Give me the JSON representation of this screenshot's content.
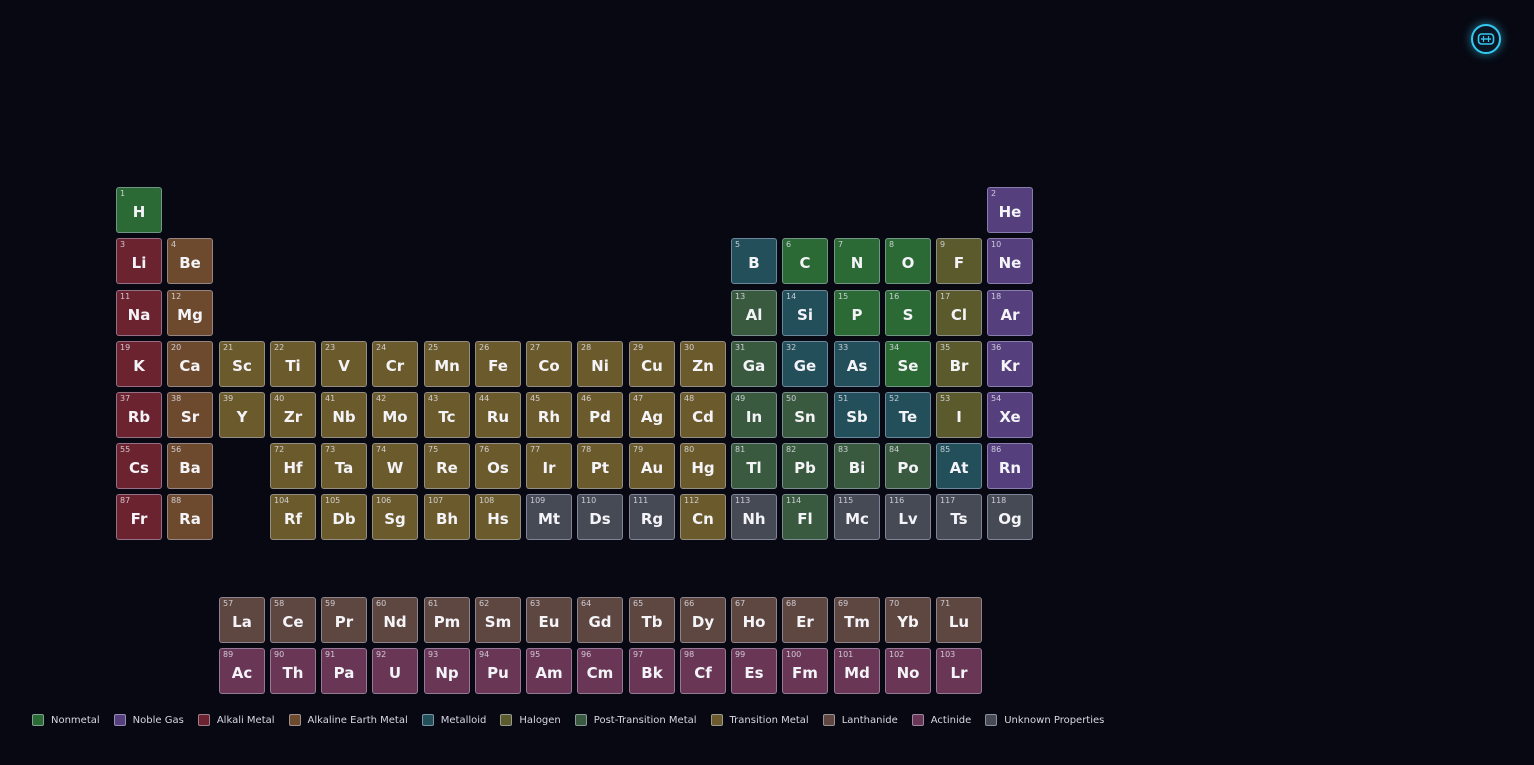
{
  "settings": {
    "icon": "palette-icon"
  },
  "categories": {
    "nonmetal": {
      "label": "Nonmetal",
      "color": "#2b6a34"
    },
    "noble": {
      "label": "Noble Gas",
      "color": "#553f7d"
    },
    "alkali": {
      "label": "Alkali Metal",
      "color": "#6c2330"
    },
    "alkaline": {
      "label": "Alkaline Earth Metal",
      "color": "#6d4a2e"
    },
    "metalloid": {
      "label": "Metalloid",
      "color": "#224f5a"
    },
    "halogen": {
      "label": "Halogen",
      "color": "#5a5a2c"
    },
    "posttrans": {
      "label": "Post-Transition Metal",
      "color": "#3a5a40"
    },
    "transition": {
      "label": "Transition Metal",
      "color": "#6b5a2c"
    },
    "lanthanide": {
      "label": "Lanthanide",
      "color": "#5e4740"
    },
    "actinide": {
      "label": "Actinide",
      "color": "#6a3656"
    },
    "unknown": {
      "label": "Unknown Properties",
      "color": "#464a55"
    }
  },
  "legend_order": [
    "nonmetal",
    "noble",
    "alkali",
    "alkaline",
    "metalloid",
    "halogen",
    "posttrans",
    "transition",
    "lanthanide",
    "actinide",
    "unknown"
  ],
  "elements": [
    {
      "n": 1,
      "s": "H",
      "c": "nonmetal",
      "g": 1,
      "p": 1
    },
    {
      "n": 2,
      "s": "He",
      "c": "noble",
      "g": 18,
      "p": 1
    },
    {
      "n": 3,
      "s": "Li",
      "c": "alkali",
      "g": 1,
      "p": 2
    },
    {
      "n": 4,
      "s": "Be",
      "c": "alkaline",
      "g": 2,
      "p": 2
    },
    {
      "n": 5,
      "s": "B",
      "c": "metalloid",
      "g": 13,
      "p": 2
    },
    {
      "n": 6,
      "s": "C",
      "c": "nonmetal",
      "g": 14,
      "p": 2
    },
    {
      "n": 7,
      "s": "N",
      "c": "nonmetal",
      "g": 15,
      "p": 2
    },
    {
      "n": 8,
      "s": "O",
      "c": "nonmetal",
      "g": 16,
      "p": 2
    },
    {
      "n": 9,
      "s": "F",
      "c": "halogen",
      "g": 17,
      "p": 2
    },
    {
      "n": 10,
      "s": "Ne",
      "c": "noble",
      "g": 18,
      "p": 2
    },
    {
      "n": 11,
      "s": "Na",
      "c": "alkali",
      "g": 1,
      "p": 3
    },
    {
      "n": 12,
      "s": "Mg",
      "c": "alkaline",
      "g": 2,
      "p": 3
    },
    {
      "n": 13,
      "s": "Al",
      "c": "posttrans",
      "g": 13,
      "p": 3
    },
    {
      "n": 14,
      "s": "Si",
      "c": "metalloid",
      "g": 14,
      "p": 3
    },
    {
      "n": 15,
      "s": "P",
      "c": "nonmetal",
      "g": 15,
      "p": 3
    },
    {
      "n": 16,
      "s": "S",
      "c": "nonmetal",
      "g": 16,
      "p": 3
    },
    {
      "n": 17,
      "s": "Cl",
      "c": "halogen",
      "g": 17,
      "p": 3
    },
    {
      "n": 18,
      "s": "Ar",
      "c": "noble",
      "g": 18,
      "p": 3
    },
    {
      "n": 19,
      "s": "K",
      "c": "alkali",
      "g": 1,
      "p": 4
    },
    {
      "n": 20,
      "s": "Ca",
      "c": "alkaline",
      "g": 2,
      "p": 4
    },
    {
      "n": 21,
      "s": "Sc",
      "c": "transition",
      "g": 3,
      "p": 4
    },
    {
      "n": 22,
      "s": "Ti",
      "c": "transition",
      "g": 4,
      "p": 4
    },
    {
      "n": 23,
      "s": "V",
      "c": "transition",
      "g": 5,
      "p": 4
    },
    {
      "n": 24,
      "s": "Cr",
      "c": "transition",
      "g": 6,
      "p": 4
    },
    {
      "n": 25,
      "s": "Mn",
      "c": "transition",
      "g": 7,
      "p": 4
    },
    {
      "n": 26,
      "s": "Fe",
      "c": "transition",
      "g": 8,
      "p": 4
    },
    {
      "n": 27,
      "s": "Co",
      "c": "transition",
      "g": 9,
      "p": 4
    },
    {
      "n": 28,
      "s": "Ni",
      "c": "transition",
      "g": 10,
      "p": 4
    },
    {
      "n": 29,
      "s": "Cu",
      "c": "transition",
      "g": 11,
      "p": 4
    },
    {
      "n": 30,
      "s": "Zn",
      "c": "transition",
      "g": 12,
      "p": 4
    },
    {
      "n": 31,
      "s": "Ga",
      "c": "posttrans",
      "g": 13,
      "p": 4
    },
    {
      "n": 32,
      "s": "Ge",
      "c": "metalloid",
      "g": 14,
      "p": 4
    },
    {
      "n": 33,
      "s": "As",
      "c": "metalloid",
      "g": 15,
      "p": 4
    },
    {
      "n": 34,
      "s": "Se",
      "c": "nonmetal",
      "g": 16,
      "p": 4
    },
    {
      "n": 35,
      "s": "Br",
      "c": "halogen",
      "g": 17,
      "p": 4
    },
    {
      "n": 36,
      "s": "Kr",
      "c": "noble",
      "g": 18,
      "p": 4
    },
    {
      "n": 37,
      "s": "Rb",
      "c": "alkali",
      "g": 1,
      "p": 5
    },
    {
      "n": 38,
      "s": "Sr",
      "c": "alkaline",
      "g": 2,
      "p": 5
    },
    {
      "n": 39,
      "s": "Y",
      "c": "transition",
      "g": 3,
      "p": 5
    },
    {
      "n": 40,
      "s": "Zr",
      "c": "transition",
      "g": 4,
      "p": 5
    },
    {
      "n": 41,
      "s": "Nb",
      "c": "transition",
      "g": 5,
      "p": 5
    },
    {
      "n": 42,
      "s": "Mo",
      "c": "transition",
      "g": 6,
      "p": 5
    },
    {
      "n": 43,
      "s": "Tc",
      "c": "transition",
      "g": 7,
      "p": 5
    },
    {
      "n": 44,
      "s": "Ru",
      "c": "transition",
      "g": 8,
      "p": 5
    },
    {
      "n": 45,
      "s": "Rh",
      "c": "transition",
      "g": 9,
      "p": 5
    },
    {
      "n": 46,
      "s": "Pd",
      "c": "transition",
      "g": 10,
      "p": 5
    },
    {
      "n": 47,
      "s": "Ag",
      "c": "transition",
      "g": 11,
      "p": 5
    },
    {
      "n": 48,
      "s": "Cd",
      "c": "transition",
      "g": 12,
      "p": 5
    },
    {
      "n": 49,
      "s": "In",
      "c": "posttrans",
      "g": 13,
      "p": 5
    },
    {
      "n": 50,
      "s": "Sn",
      "c": "posttrans",
      "g": 14,
      "p": 5
    },
    {
      "n": 51,
      "s": "Sb",
      "c": "metalloid",
      "g": 15,
      "p": 5
    },
    {
      "n": 52,
      "s": "Te",
      "c": "metalloid",
      "g": 16,
      "p": 5
    },
    {
      "n": 53,
      "s": "I",
      "c": "halogen",
      "g": 17,
      "p": 5
    },
    {
      "n": 54,
      "s": "Xe",
      "c": "noble",
      "g": 18,
      "p": 5
    },
    {
      "n": 55,
      "s": "Cs",
      "c": "alkali",
      "g": 1,
      "p": 6
    },
    {
      "n": 56,
      "s": "Ba",
      "c": "alkaline",
      "g": 2,
      "p": 6
    },
    {
      "n": 72,
      "s": "Hf",
      "c": "transition",
      "g": 4,
      "p": 6
    },
    {
      "n": 73,
      "s": "Ta",
      "c": "transition",
      "g": 5,
      "p": 6
    },
    {
      "n": 74,
      "s": "W",
      "c": "transition",
      "g": 6,
      "p": 6
    },
    {
      "n": 75,
      "s": "Re",
      "c": "transition",
      "g": 7,
      "p": 6
    },
    {
      "n": 76,
      "s": "Os",
      "c": "transition",
      "g": 8,
      "p": 6
    },
    {
      "n": 77,
      "s": "Ir",
      "c": "transition",
      "g": 9,
      "p": 6
    },
    {
      "n": 78,
      "s": "Pt",
      "c": "transition",
      "g": 10,
      "p": 6
    },
    {
      "n": 79,
      "s": "Au",
      "c": "transition",
      "g": 11,
      "p": 6
    },
    {
      "n": 80,
      "s": "Hg",
      "c": "transition",
      "g": 12,
      "p": 6
    },
    {
      "n": 81,
      "s": "Tl",
      "c": "posttrans",
      "g": 13,
      "p": 6
    },
    {
      "n": 82,
      "s": "Pb",
      "c": "posttrans",
      "g": 14,
      "p": 6
    },
    {
      "n": 83,
      "s": "Bi",
      "c": "posttrans",
      "g": 15,
      "p": 6
    },
    {
      "n": 84,
      "s": "Po",
      "c": "posttrans",
      "g": 16,
      "p": 6
    },
    {
      "n": 85,
      "s": "At",
      "c": "metalloid",
      "g": 17,
      "p": 6
    },
    {
      "n": 86,
      "s": "Rn",
      "c": "noble",
      "g": 18,
      "p": 6
    },
    {
      "n": 87,
      "s": "Fr",
      "c": "alkali",
      "g": 1,
      "p": 7
    },
    {
      "n": 88,
      "s": "Ra",
      "c": "alkaline",
      "g": 2,
      "p": 7
    },
    {
      "n": 104,
      "s": "Rf",
      "c": "transition",
      "g": 4,
      "p": 7
    },
    {
      "n": 105,
      "s": "Db",
      "c": "transition",
      "g": 5,
      "p": 7
    },
    {
      "n": 106,
      "s": "Sg",
      "c": "transition",
      "g": 6,
      "p": 7
    },
    {
      "n": 107,
      "s": "Bh",
      "c": "transition",
      "g": 7,
      "p": 7
    },
    {
      "n": 108,
      "s": "Hs",
      "c": "transition",
      "g": 8,
      "p": 7
    },
    {
      "n": 109,
      "s": "Mt",
      "c": "unknown",
      "g": 9,
      "p": 7
    },
    {
      "n": 110,
      "s": "Ds",
      "c": "unknown",
      "g": 10,
      "p": 7
    },
    {
      "n": 111,
      "s": "Rg",
      "c": "unknown",
      "g": 11,
      "p": 7
    },
    {
      "n": 112,
      "s": "Cn",
      "c": "transition",
      "g": 12,
      "p": 7
    },
    {
      "n": 113,
      "s": "Nh",
      "c": "unknown",
      "g": 13,
      "p": 7
    },
    {
      "n": 114,
      "s": "Fl",
      "c": "posttrans",
      "g": 14,
      "p": 7
    },
    {
      "n": 115,
      "s": "Mc",
      "c": "unknown",
      "g": 15,
      "p": 7
    },
    {
      "n": 116,
      "s": "Lv",
      "c": "unknown",
      "g": 16,
      "p": 7
    },
    {
      "n": 117,
      "s": "Ts",
      "c": "unknown",
      "g": 17,
      "p": 7
    },
    {
      "n": 118,
      "s": "Og",
      "c": "unknown",
      "g": 18,
      "p": 7
    },
    {
      "n": 57,
      "s": "La",
      "c": "lanthanide",
      "g": 3,
      "p": 9
    },
    {
      "n": 58,
      "s": "Ce",
      "c": "lanthanide",
      "g": 4,
      "p": 9
    },
    {
      "n": 59,
      "s": "Pr",
      "c": "lanthanide",
      "g": 5,
      "p": 9
    },
    {
      "n": 60,
      "s": "Nd",
      "c": "lanthanide",
      "g": 6,
      "p": 9
    },
    {
      "n": 61,
      "s": "Pm",
      "c": "lanthanide",
      "g": 7,
      "p": 9
    },
    {
      "n": 62,
      "s": "Sm",
      "c": "lanthanide",
      "g": 8,
      "p": 9
    },
    {
      "n": 63,
      "s": "Eu",
      "c": "lanthanide",
      "g": 9,
      "p": 9
    },
    {
      "n": 64,
      "s": "Gd",
      "c": "lanthanide",
      "g": 10,
      "p": 9
    },
    {
      "n": 65,
      "s": "Tb",
      "c": "lanthanide",
      "g": 11,
      "p": 9
    },
    {
      "n": 66,
      "s": "Dy",
      "c": "lanthanide",
      "g": 12,
      "p": 9
    },
    {
      "n": 67,
      "s": "Ho",
      "c": "lanthanide",
      "g": 13,
      "p": 9
    },
    {
      "n": 68,
      "s": "Er",
      "c": "lanthanide",
      "g": 14,
      "p": 9
    },
    {
      "n": 69,
      "s": "Tm",
      "c": "lanthanide",
      "g": 15,
      "p": 9
    },
    {
      "n": 70,
      "s": "Yb",
      "c": "lanthanide",
      "g": 16,
      "p": 9
    },
    {
      "n": 71,
      "s": "Lu",
      "c": "lanthanide",
      "g": 17,
      "p": 9
    },
    {
      "n": 89,
      "s": "Ac",
      "c": "actinide",
      "g": 3,
      "p": 10
    },
    {
      "n": 90,
      "s": "Th",
      "c": "actinide",
      "g": 4,
      "p": 10
    },
    {
      "n": 91,
      "s": "Pa",
      "c": "actinide",
      "g": 5,
      "p": 10
    },
    {
      "n": 92,
      "s": "U",
      "c": "actinide",
      "g": 6,
      "p": 10
    },
    {
      "n": 93,
      "s": "Np",
      "c": "actinide",
      "g": 7,
      "p": 10
    },
    {
      "n": 94,
      "s": "Pu",
      "c": "actinide",
      "g": 8,
      "p": 10
    },
    {
      "n": 95,
      "s": "Am",
      "c": "actinide",
      "g": 9,
      "p": 10
    },
    {
      "n": 96,
      "s": "Cm",
      "c": "actinide",
      "g": 10,
      "p": 10
    },
    {
      "n": 97,
      "s": "Bk",
      "c": "actinide",
      "g": 11,
      "p": 10
    },
    {
      "n": 98,
      "s": "Cf",
      "c": "actinide",
      "g": 12,
      "p": 10
    },
    {
      "n": 99,
      "s": "Es",
      "c": "actinide",
      "g": 13,
      "p": 10
    },
    {
      "n": 100,
      "s": "Fm",
      "c": "actinide",
      "g": 14,
      "p": 10
    },
    {
      "n": 101,
      "s": "Md",
      "c": "actinide",
      "g": 15,
      "p": 10
    },
    {
      "n": 102,
      "s": "No",
      "c": "actinide",
      "g": 16,
      "p": 10
    },
    {
      "n": 103,
      "s": "Lr",
      "c": "actinide",
      "g": 17,
      "p": 10
    }
  ]
}
